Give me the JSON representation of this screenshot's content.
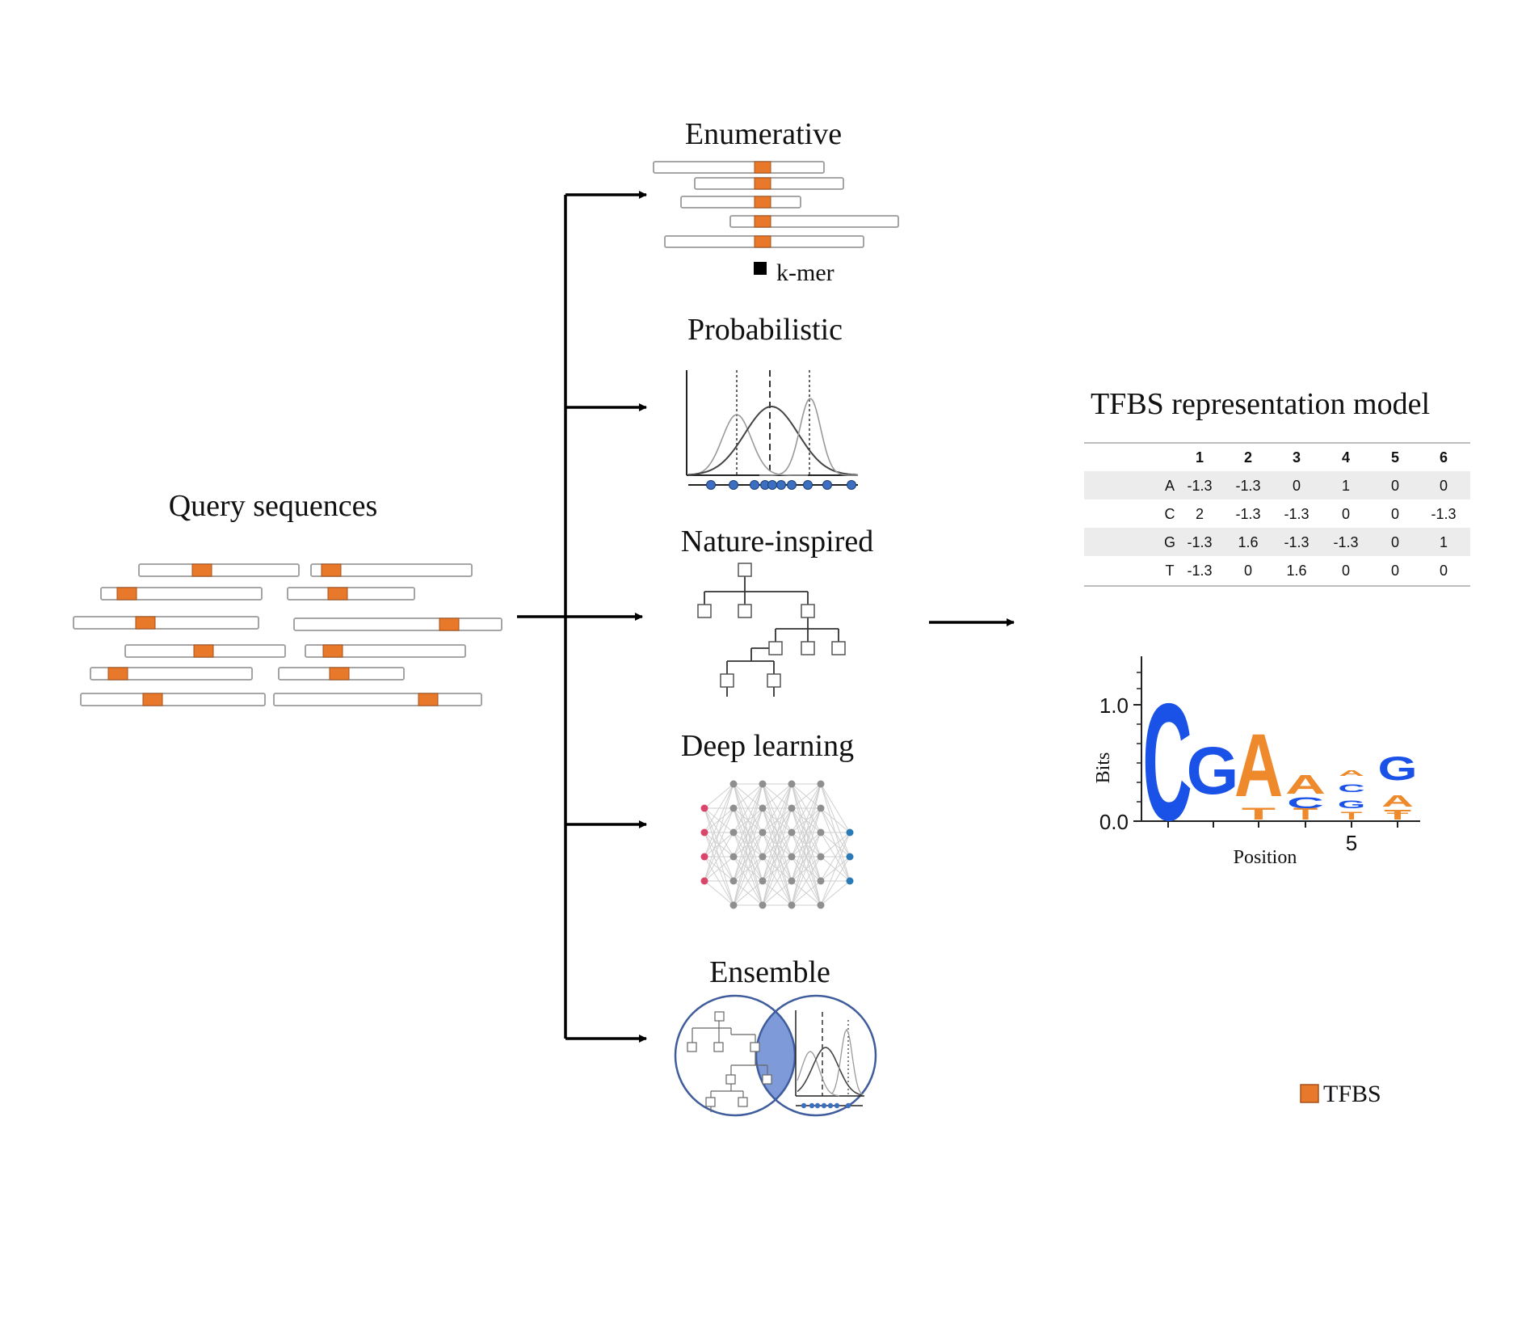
{
  "colors": {
    "tfbs": "#E8782A",
    "seq_border": "#9a9a9a",
    "arrow": "#000000",
    "logo_blue": "#1a52e8",
    "logo_orange": "#ee8a2c",
    "dot_blue": "#3d6fc1",
    "venn_fill": "#7e9ad9",
    "venn_stroke": "#3f5c9c",
    "nn_red": "#d9456b",
    "nn_grey": "#8f8f8f",
    "nn_blue": "#2a7ab8"
  },
  "query": {
    "title": "Query sequences"
  },
  "methods": {
    "enumerative": {
      "title": "Enumerative",
      "kmer_label": "k-mer"
    },
    "probabilistic": {
      "title": "Probabilistic"
    },
    "nature": {
      "title": "Nature-inspired"
    },
    "deep": {
      "title": "Deep learning"
    },
    "ensemble": {
      "title": "Ensemble"
    }
  },
  "model": {
    "title": "TFBS representation model",
    "matrix": {
      "columns": [
        "1",
        "2",
        "3",
        "4",
        "5",
        "6"
      ],
      "rows": [
        {
          "base": "A",
          "values": [
            "-1.3",
            "-1.3",
            "0",
            "1",
            "0",
            "0"
          ]
        },
        {
          "base": "C",
          "values": [
            "2",
            "-1.3",
            "-1.3",
            "0",
            "0",
            "-1.3"
          ]
        },
        {
          "base": "G",
          "values": [
            "-1.3",
            "1.6",
            "-1.3",
            "-1.3",
            "0",
            "1"
          ]
        },
        {
          "base": "T",
          "values": [
            "-1.3",
            "0",
            "1.6",
            "0",
            "0",
            "0"
          ]
        }
      ]
    },
    "logo": {
      "ylabel": "Bits",
      "xlabel": "Position",
      "ytick_top": "1.0",
      "ytick_bottom": "0.0",
      "xtick": "5",
      "letters": [
        "C",
        "G",
        "T",
        "A",
        "T",
        "A",
        "C",
        "T",
        "A",
        "C",
        "G",
        "T",
        "G",
        "A",
        "T"
      ]
    }
  },
  "legend": {
    "label": "TFBS"
  }
}
